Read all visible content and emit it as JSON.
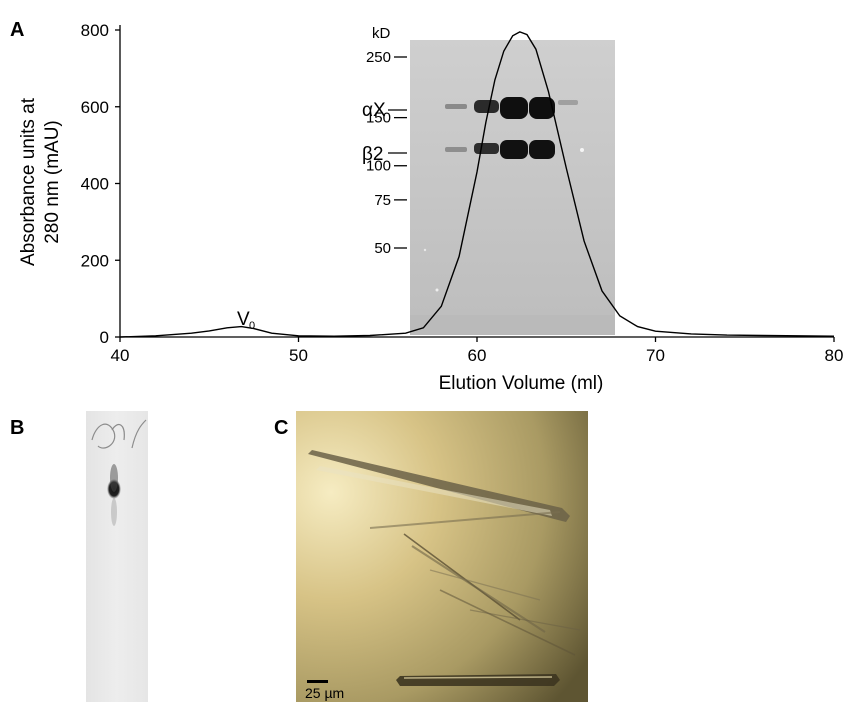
{
  "panels": {
    "a_label": "A",
    "b_label": "B",
    "c_label": "C"
  },
  "chart_data": {
    "type": "line",
    "title": "",
    "xlabel": "Elution Volume (ml)",
    "ylabel_line1": "Absorbance units at",
    "ylabel_line2": "280 nm (mAU)",
    "xlim": [
      40,
      80
    ],
    "ylim": [
      0,
      800
    ],
    "xticks": [
      "40",
      "50",
      "60",
      "70",
      "80"
    ],
    "yticks": [
      "0",
      "200",
      "400",
      "600",
      "800"
    ],
    "grid": false,
    "series": [
      {
        "x": [
          40,
          42,
          44,
          45,
          46,
          46.8,
          47.5,
          48.5,
          50,
          52,
          54,
          56,
          57,
          58,
          59,
          60,
          60.5,
          61,
          61.5,
          62,
          62.4,
          62.8,
          63.3,
          64,
          65,
          66,
          67,
          68,
          69,
          70,
          72,
          74,
          76,
          78,
          80
        ],
        "y": [
          0,
          3,
          10,
          16,
          24,
          27,
          22,
          10,
          3,
          2,
          4,
          10,
          24,
          80,
          210,
          430,
          560,
          670,
          745,
          785,
          795,
          788,
          750,
          640,
          440,
          250,
          120,
          55,
          27,
          15,
          8,
          5,
          4,
          3,
          2
        ]
      }
    ],
    "annotations": {
      "void_volume": {
        "text": "V",
        "subscript": "0",
        "x": 47,
        "y": 60
      }
    }
  },
  "gel_inset": {
    "unit_label": "kD",
    "markers": [
      "250",
      "150",
      "100",
      "75",
      "50"
    ],
    "marker_kd": [
      250,
      150,
      100,
      75,
      50
    ],
    "band_labels": [
      "αX",
      "β2"
    ]
  },
  "panel_c": {
    "scale_bar_label": "25 µm"
  }
}
